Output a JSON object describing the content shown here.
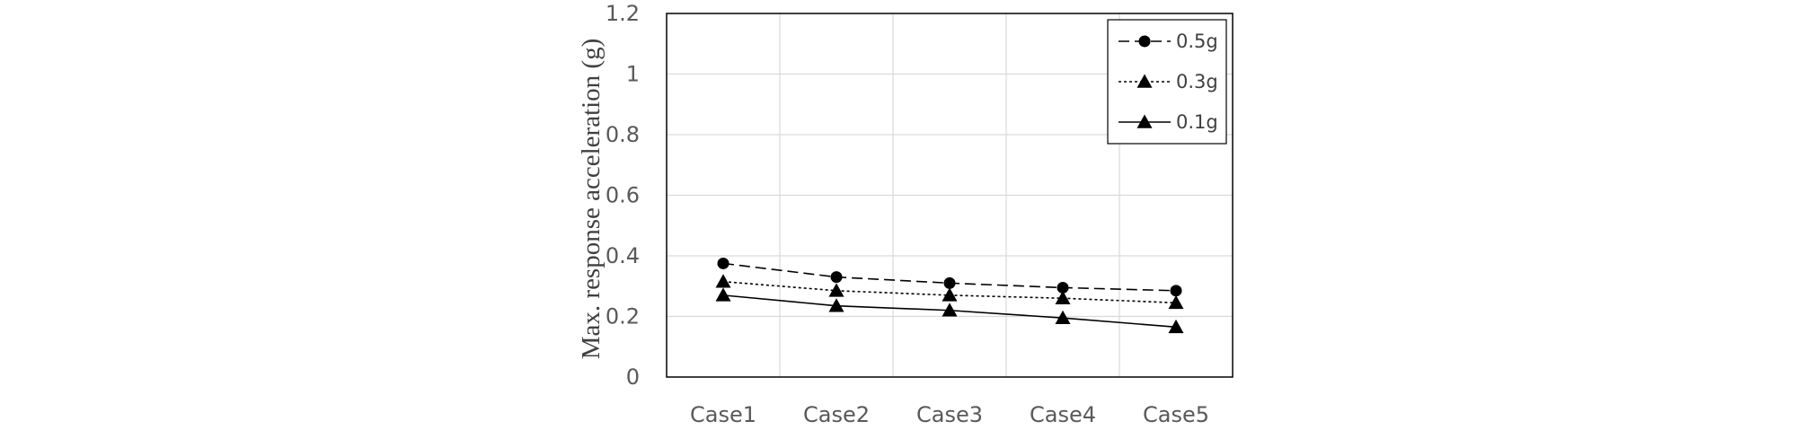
{
  "chart_data": {
    "type": "line",
    "title": "",
    "xlabel": "",
    "ylabel": "Max. response acceleration (g)",
    "categories": [
      "Case1",
      "Case2",
      "Case3",
      "Case4",
      "Case5"
    ],
    "ylim": [
      0,
      1.2
    ],
    "yticks": [
      "0",
      "0.2",
      "0.4",
      "0.6",
      "0.8",
      "1",
      "1.2"
    ],
    "grid": true,
    "legend_position": "top-right",
    "series": [
      {
        "name": "0.5g",
        "values": [
          0.375,
          0.33,
          0.31,
          0.295,
          0.285
        ],
        "marker": "circle",
        "line_style": "dashed",
        "color": "#000000"
      },
      {
        "name": "0.3g",
        "values": [
          0.315,
          0.285,
          0.27,
          0.26,
          0.245
        ],
        "marker": "triangle",
        "line_style": "dotted",
        "color": "#000000"
      },
      {
        "name": "0.1g",
        "values": [
          0.27,
          0.235,
          0.22,
          0.195,
          0.165
        ],
        "marker": "triangle",
        "line_style": "solid",
        "color": "#000000"
      }
    ]
  }
}
